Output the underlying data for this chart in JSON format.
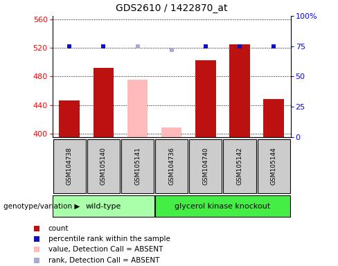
{
  "title": "GDS2610 / 1422870_at",
  "samples": [
    "GSM104738",
    "GSM105140",
    "GSM105141",
    "GSM104736",
    "GSM104740",
    "GSM105142",
    "GSM105144"
  ],
  "count_values": [
    446,
    492,
    null,
    null,
    503,
    525,
    448
  ],
  "count_absent_values": [
    null,
    null,
    476,
    408,
    null,
    null,
    null
  ],
  "rank_values": [
    75,
    75,
    null,
    null,
    75,
    75,
    75
  ],
  "rank_absent_values": [
    null,
    null,
    75,
    72,
    null,
    null,
    null
  ],
  "ylim_left": [
    395,
    565
  ],
  "ylim_right": [
    0,
    100
  ],
  "yticks_left": [
    400,
    440,
    480,
    520,
    560
  ],
  "yticks_right": [
    0,
    25,
    50,
    75,
    100
  ],
  "bar_color_present": "#bb1111",
  "bar_color_absent": "#ffbbbb",
  "rank_color_present": "#1111bb",
  "rank_color_absent": "#aaaacc",
  "wildtype_color": "#aaffaa",
  "knockout_color": "#44ee44",
  "bg_color": "#cccccc",
  "legend_items": [
    {
      "label": "count",
      "color": "#bb1111"
    },
    {
      "label": "percentile rank within the sample",
      "color": "#1111bb"
    },
    {
      "label": "value, Detection Call = ABSENT",
      "color": "#ffbbbb"
    },
    {
      "label": "rank, Detection Call = ABSENT",
      "color": "#aaaacc"
    }
  ]
}
